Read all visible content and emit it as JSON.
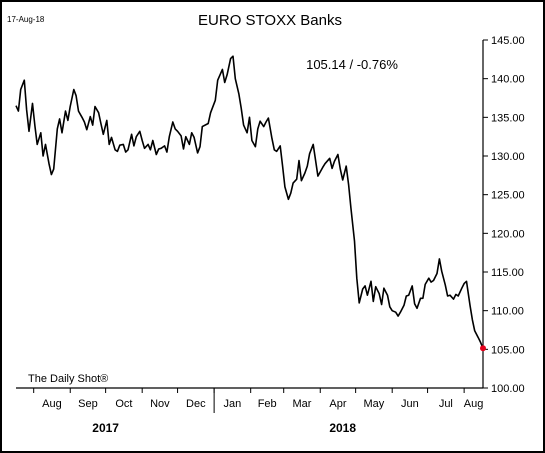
{
  "chart_data": {
    "type": "line",
    "title": "EURO STOXX Banks",
    "date_label": "17-Aug-18",
    "annotation": "105.14  /  -0.76%",
    "source": "The Daily Shot®",
    "xlabel": "",
    "ylabel": "",
    "ylim": [
      100,
      145
    ],
    "yticks": [
      "145.00",
      "140.00",
      "135.00",
      "130.00",
      "125.00",
      "120.00",
      "115.00",
      "110.00",
      "105.00",
      "100.00"
    ],
    "xlim": [
      "2017-07-17",
      "2018-08-17"
    ],
    "month_ticks": [
      {
        "label": "Aug",
        "date": "2017-08-01"
      },
      {
        "label": "Sep",
        "date": "2017-09-01"
      },
      {
        "label": "Oct",
        "date": "2017-10-01"
      },
      {
        "label": "Nov",
        "date": "2017-11-01"
      },
      {
        "label": "Dec",
        "date": "2017-12-01"
      },
      {
        "label": "Jan",
        "date": "2018-01-01"
      },
      {
        "label": "Feb",
        "date": "2018-02-01"
      },
      {
        "label": "Mar",
        "date": "2018-03-01"
      },
      {
        "label": "Apr",
        "date": "2018-04-01"
      },
      {
        "label": "May",
        "date": "2018-05-01"
      },
      {
        "label": "Jun",
        "date": "2018-06-01"
      },
      {
        "label": "Jul",
        "date": "2018-07-01"
      },
      {
        "label": "Aug",
        "date": "2018-08-01"
      }
    ],
    "year_labels": [
      {
        "label": "2017",
        "date": "2017-10-01"
      },
      {
        "label": "2018",
        "date": "2018-04-20"
      }
    ],
    "year_divider": "2018-01-01",
    "grid": false,
    "line_color": "#000000",
    "marker_color": "#e3001b",
    "series": [
      {
        "x": [
          "2017-07-17",
          "2017-07-19",
          "2017-07-21",
          "2017-07-24",
          "2017-07-26",
          "2017-07-28",
          "2017-07-31",
          "2017-08-02",
          "2017-08-04",
          "2017-08-07",
          "2017-08-09",
          "2017-08-11",
          "2017-08-14",
          "2017-08-16",
          "2017-08-18",
          "2017-08-21",
          "2017-08-23",
          "2017-08-25",
          "2017-08-28",
          "2017-08-30",
          "2017-09-01",
          "2017-09-04",
          "2017-09-06",
          "2017-09-08",
          "2017-09-11",
          "2017-09-13",
          "2017-09-15",
          "2017-09-18",
          "2017-09-20",
          "2017-09-22",
          "2017-09-25",
          "2017-09-27",
          "2017-09-29",
          "2017-10-02",
          "2017-10-04",
          "2017-10-06",
          "2017-10-09",
          "2017-10-11",
          "2017-10-13",
          "2017-10-16",
          "2017-10-18",
          "2017-10-20",
          "2017-10-23",
          "2017-10-25",
          "2017-10-27",
          "2017-10-30",
          "2017-11-01",
          "2017-11-03",
          "2017-11-06",
          "2017-11-08",
          "2017-11-10",
          "2017-11-13",
          "2017-11-15",
          "2017-11-17",
          "2017-11-20",
          "2017-11-22",
          "2017-11-24",
          "2017-11-27",
          "2017-11-29",
          "2017-12-01",
          "2017-12-04",
          "2017-12-06",
          "2017-12-08",
          "2017-12-11",
          "2017-12-13",
          "2017-12-15",
          "2017-12-18",
          "2017-12-20",
          "2017-12-22",
          "2017-12-27",
          "2017-12-29",
          "2018-01-02",
          "2018-01-04",
          "2018-01-08",
          "2018-01-10",
          "2018-01-12",
          "2018-01-15",
          "2018-01-17",
          "2018-01-19",
          "2018-01-22",
          "2018-01-24",
          "2018-01-26",
          "2018-01-29",
          "2018-01-31",
          "2018-02-02",
          "2018-02-05",
          "2018-02-07",
          "2018-02-09",
          "2018-02-12",
          "2018-02-14",
          "2018-02-16",
          "2018-02-19",
          "2018-02-21",
          "2018-02-23",
          "2018-02-26",
          "2018-02-28",
          "2018-03-02",
          "2018-03-05",
          "2018-03-07",
          "2018-03-09",
          "2018-03-12",
          "2018-03-14",
          "2018-03-16",
          "2018-03-19",
          "2018-03-21",
          "2018-03-23",
          "2018-03-26",
          "2018-03-28",
          "2018-03-30",
          "2018-04-03",
          "2018-04-05",
          "2018-04-09",
          "2018-04-11",
          "2018-04-13",
          "2018-04-16",
          "2018-04-18",
          "2018-04-20",
          "2018-04-23",
          "2018-04-25",
          "2018-04-27",
          "2018-04-30",
          "2018-05-02",
          "2018-05-04",
          "2018-05-07",
          "2018-05-09",
          "2018-05-11",
          "2018-05-14",
          "2018-05-16",
          "2018-05-18",
          "2018-05-21",
          "2018-05-23",
          "2018-05-25",
          "2018-05-28",
          "2018-05-30",
          "2018-06-01",
          "2018-06-04",
          "2018-06-06",
          "2018-06-08",
          "2018-06-11",
          "2018-06-13",
          "2018-06-15",
          "2018-06-18",
          "2018-06-20",
          "2018-06-22",
          "2018-06-25",
          "2018-06-27",
          "2018-06-29",
          "2018-07-02",
          "2018-07-04",
          "2018-07-06",
          "2018-07-09",
          "2018-07-11",
          "2018-07-13",
          "2018-07-16",
          "2018-07-18",
          "2018-07-20",
          "2018-07-23",
          "2018-07-25",
          "2018-07-27",
          "2018-07-30",
          "2018-08-01",
          "2018-08-03",
          "2018-08-06",
          "2018-08-08",
          "2018-08-10",
          "2018-08-13",
          "2018-08-15",
          "2018-08-17"
        ],
        "y": [
          136.5,
          135.8,
          138.6,
          139.8,
          136.0,
          133.2,
          136.8,
          133.9,
          131.5,
          133.0,
          130.0,
          131.5,
          129.0,
          127.6,
          128.3,
          133.5,
          134.8,
          133.0,
          135.8,
          134.6,
          136.4,
          138.6,
          137.8,
          135.8,
          135.0,
          134.4,
          133.4,
          135.1,
          134.0,
          136.4,
          135.6,
          134.2,
          132.8,
          134.6,
          131.5,
          132.4,
          130.8,
          130.6,
          131.4,
          131.5,
          130.5,
          130.8,
          132.8,
          131.3,
          132.5,
          133.2,
          132.0,
          131.0,
          131.5,
          130.8,
          132.0,
          130.2,
          130.9,
          131.0,
          131.3,
          130.5,
          132.5,
          134.4,
          133.5,
          133.2,
          132.6,
          130.9,
          132.5,
          131.5,
          133.0,
          132.4,
          130.4,
          131.2,
          133.8,
          134.2,
          135.6,
          137.2,
          139.8,
          141.2,
          139.5,
          140.5,
          142.6,
          142.9,
          140.0,
          138.0,
          136.2,
          134.0,
          133.0,
          135.0,
          132.0,
          131.2,
          133.5,
          134.5,
          133.8,
          134.4,
          134.9,
          132.3,
          130.8,
          130.6,
          131.3,
          128.8,
          126.0,
          124.4,
          125.2,
          126.5,
          127.0,
          129.4,
          126.8,
          127.8,
          128.7,
          130.3,
          131.5,
          129.5,
          127.4,
          128.5,
          129.0,
          129.7,
          128.4,
          129.3,
          130.2,
          128.3,
          126.9,
          128.7,
          126.3,
          123.3,
          119.0,
          114.2,
          111.0,
          112.8,
          113.2,
          112.0,
          113.8,
          111.2,
          113.1,
          112.2,
          110.8,
          112.9,
          112.0,
          110.5,
          110.0,
          109.8,
          109.3,
          109.8,
          110.7,
          111.9,
          112.0,
          113.2,
          110.9,
          110.3,
          111.6,
          111.6,
          113.4,
          114.2,
          113.7,
          113.9,
          114.8,
          116.7,
          115.1,
          113.3,
          111.9,
          112.0,
          111.5,
          112.1,
          111.9,
          112.9,
          113.5,
          113.8,
          110.7,
          108.8,
          107.4,
          106.5,
          105.9,
          105.14
        ]
      }
    ]
  }
}
